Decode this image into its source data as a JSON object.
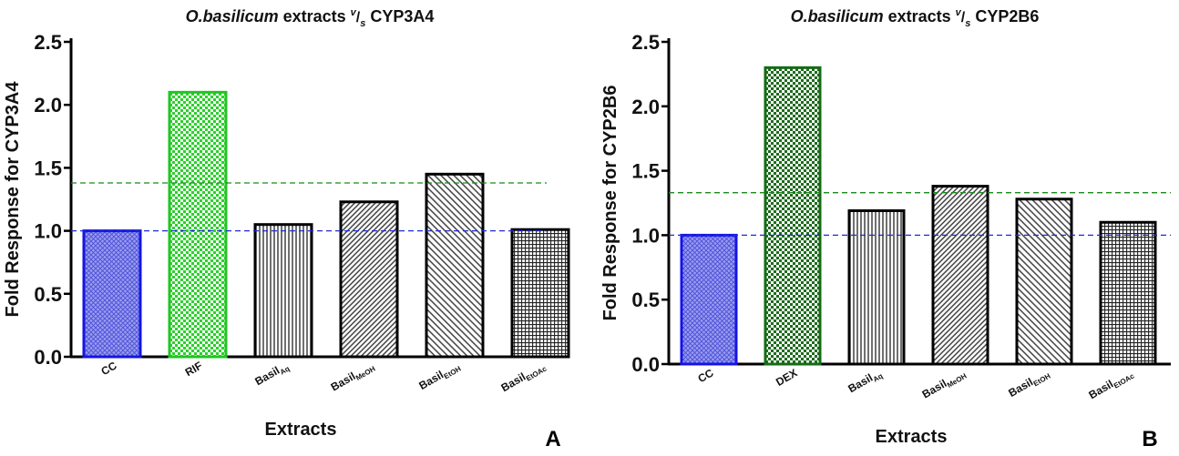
{
  "chart_data": [
    {
      "type": "bar",
      "panel_label": "A",
      "title": {
        "species": "O.basilicum",
        "pre": " extracts ",
        "sup": "v",
        "slash": "/",
        "sub": "s",
        "post": " CYP3A4"
      },
      "xlabel": "Extracts",
      "ylabel": "Fold Response for CYP3A4",
      "ylim": [
        0,
        2.5
      ],
      "yticks": [
        "0.0",
        "0.5",
        "1.0",
        "1.5",
        "2.0",
        "2.5"
      ],
      "categories": [
        {
          "base": "CC",
          "sub": ""
        },
        {
          "base": "RIF",
          "sub": ""
        },
        {
          "base": "Basil",
          "sub": "Aq"
        },
        {
          "base": "Basil",
          "sub": "MeOH"
        },
        {
          "base": "Basil",
          "sub": "EtOH"
        },
        {
          "base": "Basil",
          "sub": "EtOAc"
        }
      ],
      "values": [
        1.0,
        2.1,
        1.05,
        1.23,
        1.45,
        1.01
      ],
      "patterns": [
        "crosshatch-blue",
        "checker-green",
        "vertical",
        "diagonal-dense",
        "diagonal",
        "grid"
      ],
      "reference_lines": [
        {
          "value": 1.0,
          "color": "#1f2bd6"
        },
        {
          "value": 1.38,
          "color": "#1a8a1a"
        }
      ]
    },
    {
      "type": "bar",
      "panel_label": "B",
      "title": {
        "species": "O.basilicum",
        "pre": " extracts ",
        "sup": "v",
        "slash": "/",
        "sub": "s",
        "post": " CYP2B6"
      },
      "xlabel": "Extracts",
      "ylabel": "Fold Response for CYP2B6",
      "ylim": [
        0,
        2.5
      ],
      "yticks": [
        "0.0",
        "0.5",
        "1.0",
        "1.5",
        "2.0",
        "2.5"
      ],
      "categories": [
        {
          "base": "CC",
          "sub": ""
        },
        {
          "base": "DEX",
          "sub": ""
        },
        {
          "base": "Basil",
          "sub": "Aq"
        },
        {
          "base": "Basil",
          "sub": "MeOH"
        },
        {
          "base": "Basil",
          "sub": "EtOH"
        },
        {
          "base": "Basil",
          "sub": "EtOAc"
        }
      ],
      "values": [
        1.0,
        2.3,
        1.19,
        1.38,
        1.28,
        1.1
      ],
      "patterns": [
        "crosshatch-blue",
        "checker-darkgreen",
        "vertical",
        "diagonal-dense",
        "diagonal",
        "grid"
      ],
      "reference_lines": [
        {
          "value": 1.0,
          "color": "#1f2bd6"
        },
        {
          "value": 1.33,
          "color": "#1a8a1a"
        }
      ]
    }
  ],
  "colors": {
    "blue_border": "#1414e6",
    "green_border": "#22c422",
    "darkgreen_border": "#156b15"
  }
}
